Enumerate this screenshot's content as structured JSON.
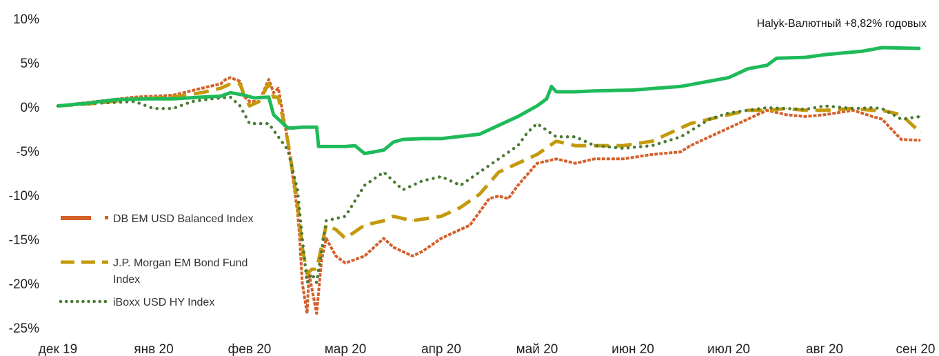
{
  "chart_data": {
    "type": "line",
    "title": "",
    "xlabel": "",
    "ylabel": "",
    "annotation": "Halyk-Валютный +8,82% годовых",
    "ylim": [
      -25,
      10
    ],
    "y_ticks": [
      "10%",
      "5%",
      "0%",
      "-5%",
      "-10%",
      "-15%",
      "-20%",
      "-25%"
    ],
    "x_ticks": [
      "дек 19",
      "янв 20",
      "фев 20",
      "мар 20",
      "апр 20",
      "май 20",
      "июн 20",
      "июл 20",
      "авг 20",
      "сен 20"
    ],
    "grid": false,
    "legend_position": "bottom-left",
    "series": [
      {
        "name": "Halyk-Валютный",
        "color": "#1fba5a",
        "style": "solid",
        "x": [
          0,
          0.3,
          0.6,
          0.9,
          1.2,
          1.5,
          1.7,
          1.8,
          1.95,
          2.05,
          2.2,
          2.25,
          2.4,
          2.45,
          2.55,
          2.7,
          2.72,
          3.0,
          3.1,
          3.2,
          3.3,
          3.4,
          3.5,
          3.6,
          3.8,
          4.0,
          4.4,
          4.6,
          4.8,
          5.0,
          5.1,
          5.15,
          5.2,
          5.4,
          5.6,
          6.0,
          6.5,
          7.0,
          7.2,
          7.4,
          7.5,
          7.8,
          8.0,
          8.4,
          8.6,
          9.0
        ],
        "y": [
          0,
          0.3,
          0.7,
          0.8,
          0.8,
          1.0,
          1.1,
          1.5,
          1.2,
          0.9,
          1.0,
          -1.0,
          -2.5,
          -2.5,
          -2.4,
          -2.4,
          -4.6,
          -4.6,
          -4.5,
          -5.4,
          -5.2,
          -5.0,
          -4.1,
          -3.8,
          -3.7,
          -3.7,
          -3.2,
          -2.2,
          -1.2,
          0.0,
          0.8,
          2.2,
          1.6,
          1.6,
          1.7,
          1.8,
          2.2,
          3.2,
          4.2,
          4.6,
          5.4,
          5.5,
          5.8,
          6.2,
          6.6,
          6.5
        ]
      },
      {
        "name": "DB EM USD Balanced Index",
        "color": "#d4602a",
        "style": "square-markers",
        "x": [
          0,
          0.4,
          0.8,
          1.2,
          1.5,
          1.7,
          1.75,
          1.8,
          1.9,
          1.95,
          2.0,
          2.1,
          2.2,
          2.25,
          2.3,
          2.4,
          2.45,
          2.5,
          2.52,
          2.55,
          2.6,
          2.62,
          2.7,
          2.75,
          2.8,
          2.9,
          3.0,
          3.2,
          3.4,
          3.5,
          3.7,
          3.8,
          4.0,
          4.1,
          4.3,
          4.5,
          4.6,
          4.7,
          4.8,
          5.0,
          5.2,
          5.4,
          5.6,
          5.9,
          6.2,
          6.5,
          6.6,
          6.8,
          7.0,
          7.2,
          7.4,
          7.6,
          7.8,
          8.0,
          8.3,
          8.5,
          8.6,
          8.8,
          9.0
        ],
        "y": [
          0,
          0.5,
          1.0,
          1.2,
          2.0,
          2.5,
          3.0,
          3.2,
          2.8,
          1.0,
          0.5,
          0.5,
          3.0,
          1.5,
          2.0,
          -4.0,
          -8.0,
          -12.0,
          -14.5,
          -20.0,
          -23.5,
          -19.0,
          -23.5,
          -17.5,
          -15.0,
          -17.0,
          -17.8,
          -17.0,
          -15.0,
          -16.0,
          -17.0,
          -16.5,
          -15.0,
          -14.5,
          -13.5,
          -10.5,
          -10.2,
          -10.5,
          -9.0,
          -6.5,
          -6.0,
          -6.5,
          -6.0,
          -6.0,
          -5.5,
          -5.2,
          -4.5,
          -3.5,
          -2.5,
          -1.5,
          -0.5,
          -1.0,
          -1.2,
          -1.0,
          -0.5,
          -1.2,
          -1.5,
          -3.8,
          -3.9
        ]
      },
      {
        "name": "J.P. Morgan EM Bond Fund Index",
        "color": "#c49a0c",
        "style": "dashed",
        "x": [
          0,
          0.4,
          0.8,
          1.2,
          1.5,
          1.7,
          1.8,
          1.9,
          1.95,
          2.0,
          2.1,
          2.2,
          2.25,
          2.3,
          2.4,
          2.5,
          2.55,
          2.6,
          2.65,
          2.7,
          2.8,
          2.9,
          3.0,
          3.2,
          3.4,
          3.5,
          3.7,
          4.0,
          4.2,
          4.4,
          4.6,
          4.8,
          5.0,
          5.2,
          5.4,
          5.6,
          5.9,
          6.2,
          6.5,
          6.6,
          6.8,
          7.0,
          7.2,
          7.4,
          7.6,
          7.8,
          8.0,
          8.3,
          8.5,
          8.6,
          8.8,
          9.0
        ],
        "y": [
          0,
          0.3,
          0.8,
          1.0,
          1.5,
          2.0,
          2.5,
          2.5,
          1.0,
          0.0,
          0.5,
          2.5,
          1.0,
          1.0,
          -4.0,
          -11.0,
          -16.0,
          -19.0,
          -18.5,
          -18.5,
          -13.5,
          -14.0,
          -15.0,
          -13.5,
          -13.0,
          -12.5,
          -13.0,
          -12.5,
          -11.5,
          -10.0,
          -7.5,
          -6.5,
          -5.5,
          -4.0,
          -4.5,
          -4.5,
          -4.5,
          -4.0,
          -2.5,
          -2.0,
          -1.5,
          -1.0,
          -0.5,
          -0.5,
          -0.3,
          -0.5,
          -0.5,
          -0.3,
          -0.5,
          -0.5,
          -1.0,
          -3.0
        ]
      },
      {
        "name": "iBoxx USD HY Index",
        "color": "#4a7a32",
        "style": "dotted",
        "x": [
          0,
          0.4,
          0.8,
          1.0,
          1.2,
          1.4,
          1.6,
          1.8,
          1.9,
          2.0,
          2.2,
          2.4,
          2.5,
          2.55,
          2.6,
          2.65,
          2.7,
          2.8,
          3.0,
          3.2,
          3.4,
          3.6,
          3.8,
          4.0,
          4.2,
          4.4,
          4.6,
          4.8,
          4.9,
          5.0,
          5.2,
          5.4,
          5.6,
          5.9,
          6.2,
          6.5,
          6.8,
          7.0,
          7.2,
          7.4,
          7.6,
          7.8,
          8.0,
          8.3,
          8.5,
          8.6,
          8.8,
          9.0
        ],
        "y": [
          0,
          0.3,
          0.5,
          -0.3,
          -0.3,
          0.5,
          0.8,
          1.0,
          0.0,
          -2.0,
          -2.0,
          -5.0,
          -9.5,
          -15.0,
          -20.0,
          -19.0,
          -20.0,
          -13.0,
          -12.5,
          -9.0,
          -7.5,
          -9.5,
          -8.5,
          -8.0,
          -9.0,
          -7.5,
          -6.0,
          -4.5,
          -3.0,
          -2.0,
          -3.5,
          -3.5,
          -4.5,
          -4.8,
          -4.5,
          -3.5,
          -1.5,
          -0.8,
          -0.5,
          -0.2,
          -0.3,
          -0.4,
          0.0,
          -0.3,
          -0.2,
          -0.3,
          -1.5,
          -1.2
        ]
      }
    ]
  }
}
